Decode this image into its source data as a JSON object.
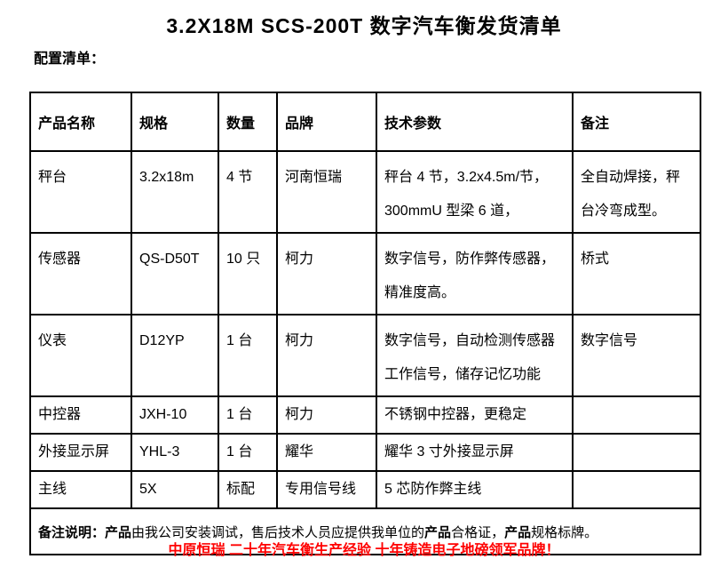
{
  "page": {
    "title": "3.2X18M SCS-200T 数字汽车衡发货清单",
    "subtitle": "配置清单：",
    "footer_slogan": "中原恒瑞 二十年汽车衡生产经验 十年铸造电子地磅领军品牌！",
    "slogan_color": "#ff0000",
    "text_color": "#000000",
    "border_color": "#000000"
  },
  "table": {
    "column_keys": [
      "product",
      "spec",
      "qty",
      "brand",
      "params",
      "remark"
    ],
    "headers": [
      "产品名称",
      "规格",
      "数量",
      "品牌",
      "技术参数",
      "备注"
    ],
    "rows": [
      {
        "name": "秤台",
        "spec": "3.2x18m",
        "qty": "4 节",
        "brand": "河南恒瑞",
        "params": [
          "秤台 4 节，3.2x4.5m/节，",
          "300mmU 型梁 6 道，"
        ],
        "remark": [
          "全自动焊接，秤",
          "台冷弯成型。"
        ]
      },
      {
        "name": "传感器",
        "spec": "QS-D50T",
        "qty": "10 只",
        "brand": "柯力",
        "params": [
          "数字信号，防作弊传感器，",
          "精准度高。"
        ],
        "remark": [
          "桥式"
        ]
      },
      {
        "name": "仪表",
        "spec": "D12YP",
        "qty": "1 台",
        "brand": "柯力",
        "params": [
          "数字信号，自动检测传感器",
          "工作信号，储存记忆功能"
        ],
        "remark": [
          "数字信号"
        ]
      },
      {
        "name": "中控器",
        "spec": "JXH-10",
        "qty": "1 台",
        "brand": "柯力",
        "params": [
          "不锈钢中控器，更稳定"
        ],
        "remark": []
      },
      {
        "name": "外接显示屏",
        "spec": "YHL-3",
        "qty": "1 台",
        "brand": "耀华",
        "params": [
          "耀华 3 寸外接显示屏"
        ],
        "remark": []
      },
      {
        "name": "主线",
        "spec": "5X",
        "qty": "标配",
        "brand": "专用信号线",
        "params": [
          "5 芯防作弊主线"
        ],
        "remark": []
      }
    ],
    "note": {
      "label": "备注说明：",
      "segments": [
        {
          "text": "产品",
          "bold": true
        },
        {
          "text": "由我公司安装调试，售后技术人员应提供我单位的",
          "bold": false
        },
        {
          "text": "产品",
          "bold": true
        },
        {
          "text": "合格证，",
          "bold": false
        },
        {
          "text": "产品",
          "bold": true
        },
        {
          "text": "规格标牌。",
          "bold": false
        }
      ]
    }
  }
}
